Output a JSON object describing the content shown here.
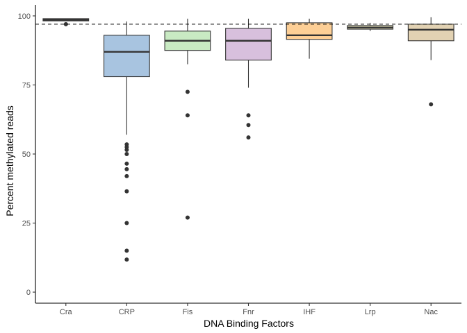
{
  "chart_data": {
    "type": "box",
    "xlabel": "DNA Binding Factors",
    "ylabel": "Percent methylated reads",
    "ylim": [
      -4,
      104
    ],
    "yticks": [
      0,
      25,
      50,
      75,
      100
    ],
    "grid": false,
    "legend": "none",
    "reference_line": {
      "y": 97,
      "style": "dashed"
    },
    "categories": [
      "Cra",
      "CRP",
      "Fis",
      "Fnr",
      "IHF",
      "Lrp",
      "Nac"
    ],
    "boxes": [
      {
        "name": "Cra",
        "min": 98.2,
        "q1": 98.2,
        "median": 98.6,
        "q3": 99.0,
        "max": 99.0,
        "outliers": [
          97.0
        ],
        "fill": "#fbb4ae"
      },
      {
        "name": "CRP",
        "min": 57.0,
        "q1": 78.0,
        "median": 87.0,
        "q3": 93.0,
        "max": 98.0,
        "outliers": [
          53.5,
          52.5,
          51.5,
          50.0,
          46.5,
          44.5,
          42.0,
          36.5,
          25.0,
          15.0,
          11.8
        ],
        "fill": "#a8c4e0"
      },
      {
        "name": "Fis",
        "min": 82.5,
        "q1": 87.5,
        "median": 91.0,
        "q3": 94.5,
        "max": 99.0,
        "outliers": [
          72.5,
          64.0,
          27.0
        ],
        "fill": "#c9eac3"
      },
      {
        "name": "Fnr",
        "min": 74.0,
        "q1": 84.0,
        "median": 91.0,
        "q3": 95.5,
        "max": 99.0,
        "outliers": [
          64.0,
          60.5,
          56.0
        ],
        "fill": "#d8c0dd"
      },
      {
        "name": "IHF",
        "min": 84.5,
        "q1": 91.5,
        "median": 93.0,
        "q3": 97.5,
        "max": 99.0,
        "outliers": [],
        "fill": "#fdcf96"
      },
      {
        "name": "Lrp",
        "min": 94.5,
        "q1": 95.2,
        "median": 95.8,
        "q3": 96.5,
        "max": 97.5,
        "outliers": [],
        "fill": "#f5f2c6"
      },
      {
        "name": "Nac",
        "min": 84.0,
        "q1": 91.0,
        "median": 95.0,
        "q3": 97.0,
        "max": 99.5,
        "outliers": [
          68.0
        ],
        "fill": "#e2d2b3"
      }
    ],
    "colors": {
      "box_stroke": "#333333",
      "point": "#333333",
      "axis": "#000000",
      "tick_label": "#4d4d4d"
    }
  }
}
